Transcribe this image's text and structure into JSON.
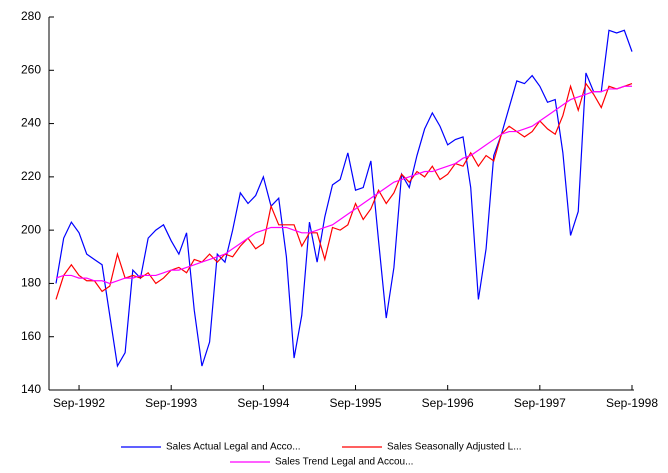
{
  "chart_data": {
    "type": "line",
    "categories": [
      null,
      null,
      null,
      "Sep-1992",
      null,
      null,
      null,
      null,
      null,
      null,
      null,
      null,
      null,
      null,
      null,
      "Sep-1993",
      null,
      null,
      null,
      null,
      null,
      null,
      null,
      null,
      null,
      null,
      null,
      "Sep-1994",
      null,
      null,
      null,
      null,
      null,
      null,
      null,
      null,
      null,
      null,
      null,
      "Sep-1995",
      null,
      null,
      null,
      null,
      null,
      null,
      null,
      null,
      null,
      null,
      null,
      "Sep-1996",
      null,
      null,
      null,
      null,
      null,
      null,
      null,
      null,
      null,
      null,
      null,
      "Sep-1997",
      null,
      null,
      null,
      null,
      null,
      null,
      null,
      null,
      null,
      null,
      null,
      "Sep-1998"
    ],
    "series": [
      {
        "name": "Sales Actual Legal and Acco...",
        "color": "#0000ff",
        "values": [
          180,
          197,
          203,
          199,
          191,
          189,
          187,
          168,
          149,
          154,
          185,
          182,
          197,
          200,
          202,
          196,
          191,
          199,
          170,
          149,
          158,
          191,
          188,
          200,
          214,
          210,
          213,
          220,
          209,
          212,
          190,
          152,
          168,
          203,
          188,
          205,
          217,
          219,
          229,
          215,
          216,
          226,
          196,
          167,
          186,
          221,
          216,
          228,
          238,
          244,
          239,
          232,
          234,
          235,
          216,
          174,
          193,
          228,
          236,
          246,
          256,
          255,
          258,
          254,
          248,
          249,
          229,
          198,
          207,
          259,
          252,
          252,
          275,
          274,
          275,
          267
        ]
      },
      {
        "name": "Sales Seasonally Adjusted L...",
        "color": "#ff0000",
        "values": [
          174,
          183,
          187,
          183,
          181,
          181,
          177,
          179,
          191,
          182,
          183,
          182,
          184,
          180,
          182,
          185,
          186,
          184,
          189,
          188,
          191,
          188,
          191,
          190,
          194,
          197,
          193,
          195,
          209,
          202,
          202,
          202,
          194,
          199,
          199,
          189,
          201,
          200,
          202,
          210,
          204,
          208,
          215,
          210,
          214,
          221,
          218,
          222,
          220,
          224,
          219,
          221,
          225,
          224,
          229,
          224,
          228,
          226,
          236,
          239,
          237,
          235,
          237,
          241,
          238,
          236,
          243,
          254,
          245,
          255,
          251,
          246,
          254,
          253,
          254,
          255
        ]
      },
      {
        "name": "Sales Trend Legal and Accou...",
        "color": "#ff00ff",
        "values": [
          182,
          183,
          183,
          182,
          182,
          181,
          181,
          180,
          181,
          182,
          182,
          183,
          183,
          183,
          184,
          185,
          185,
          186,
          187,
          188,
          189,
          190,
          191,
          193,
          195,
          197,
          199,
          200,
          201,
          201,
          201,
          200,
          199,
          199,
          200,
          201,
          202,
          204,
          206,
          208,
          210,
          212,
          214,
          216,
          218,
          219,
          220,
          221,
          222,
          222,
          223,
          224,
          225,
          227,
          228,
          230,
          232,
          234,
          236,
          237,
          237,
          238,
          239,
          241,
          243,
          245,
          247,
          249,
          250,
          251,
          252,
          252,
          253,
          253,
          254,
          254
        ]
      }
    ],
    "ylim": [
      140,
      280
    ],
    "yticks": [
      140,
      160,
      180,
      200,
      220,
      240,
      260,
      280
    ],
    "grid": false
  }
}
